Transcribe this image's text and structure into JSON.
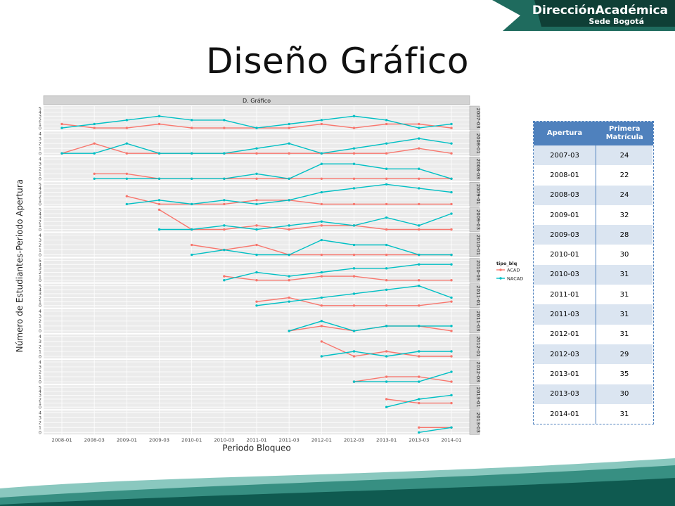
{
  "slide": {
    "title": "Diseño Gráfico"
  },
  "brand": {
    "name": "DirecciónAcadémica",
    "sub": "Sede Bogotá"
  },
  "table": {
    "headers": [
      "Apertura",
      "Primera Matrícula"
    ],
    "rows": [
      [
        "2007-03",
        "24"
      ],
      [
        "2008-01",
        "22"
      ],
      [
        "2008-03",
        "24"
      ],
      [
        "2009-01",
        "32"
      ],
      [
        "2009-03",
        "28"
      ],
      [
        "2010-01",
        "30"
      ],
      [
        "2010-03",
        "31"
      ],
      [
        "2011-01",
        "31"
      ],
      [
        "2011-03",
        "31"
      ],
      [
        "2012-01",
        "31"
      ],
      [
        "2012-03",
        "29"
      ],
      [
        "2013-01",
        "35"
      ],
      [
        "2013-03",
        "30"
      ],
      [
        "2014-01",
        "31"
      ]
    ]
  },
  "chart_data": {
    "type": "line",
    "title": "D. Gráfico",
    "xlabel": "Periodo Bloqueo",
    "ylabel": "Número de Estudiantes-Periodo Apertura",
    "x": [
      "2008-01",
      "2008-03",
      "2009-01",
      "2009-03",
      "2010-01",
      "2010-03",
      "2011-01",
      "2011-03",
      "2012-01",
      "2012-03",
      "2013-01",
      "2013-03",
      "2014-01"
    ],
    "legend": {
      "title": "tipo_blq",
      "entries": [
        "ACAD",
        "NACAD"
      ],
      "position": "right"
    },
    "series_colors": {
      "ACAD": "#f8766d",
      "NACAD": "#00bfc4"
    },
    "panels": [
      {
        "label": "2007-03",
        "yticks": [
          "0",
          "1",
          "2",
          "3",
          "4",
          "5"
        ],
        "ymax": 5,
        "ACAD": [
          1,
          0,
          0,
          1,
          0,
          0,
          0,
          0,
          1,
          0,
          1,
          1,
          0
        ],
        "NACAD": [
          0,
          1,
          2,
          3,
          2,
          2,
          0,
          1,
          2,
          3,
          2,
          0,
          1
        ]
      },
      {
        "label": "2008-01",
        "yticks": [
          "0",
          "1",
          "2",
          "3",
          "4"
        ],
        "ymax": 4,
        "ACAD": [
          0,
          2,
          0,
          0,
          0,
          0,
          0,
          0,
          0,
          0,
          0,
          1,
          0
        ],
        "NACAD": [
          0,
          0,
          2,
          0,
          0,
          0,
          1,
          2,
          0,
          1,
          2,
          3,
          2
        ]
      },
      {
        "label": "2008-03",
        "yticks": [
          "0",
          "1",
          "2",
          "3",
          "4"
        ],
        "ymax": 4,
        "ACAD": [
          null,
          1,
          1,
          0,
          0,
          0,
          0,
          0,
          0,
          0,
          0,
          0,
          0
        ],
        "NACAD": [
          null,
          0,
          0,
          0,
          0,
          0,
          1,
          0,
          3,
          3,
          2,
          2,
          0
        ]
      },
      {
        "label": "2009-01",
        "yticks": [
          "0",
          "1",
          "2",
          "3",
          "4",
          "5"
        ],
        "ymax": 5,
        "ACAD": [
          null,
          null,
          2,
          0,
          0,
          0,
          1,
          1,
          0,
          0,
          0,
          0,
          0
        ],
        "NACAD": [
          null,
          null,
          0,
          1,
          0,
          1,
          0,
          1,
          3,
          4,
          5,
          4,
          3
        ]
      },
      {
        "label": "2009-03",
        "yticks": [
          "0",
          "1",
          "2",
          "3",
          "4",
          "5"
        ],
        "ymax": 5,
        "ACAD": [
          null,
          null,
          null,
          5,
          0,
          0,
          1,
          0,
          1,
          1,
          0,
          0,
          0
        ],
        "NACAD": [
          null,
          null,
          null,
          0,
          0,
          1,
          0,
          1,
          2,
          1,
          3,
          1,
          4
        ]
      },
      {
        "label": "2010-01",
        "yticks": [
          "0",
          "1",
          "2",
          "3",
          "4"
        ],
        "ymax": 4,
        "ACAD": [
          null,
          null,
          null,
          null,
          2,
          1,
          2,
          0,
          0,
          0,
          0,
          0,
          0
        ],
        "NACAD": [
          null,
          null,
          null,
          null,
          0,
          1,
          0,
          0,
          3,
          2,
          2,
          0,
          0
        ]
      },
      {
        "label": "2010-03",
        "yticks": [
          "0",
          "1",
          "2",
          "3",
          "4",
          "5"
        ],
        "ymax": 5,
        "ACAD": [
          null,
          null,
          null,
          null,
          null,
          1,
          0,
          0,
          1,
          1,
          0,
          0,
          0
        ],
        "NACAD": [
          null,
          null,
          null,
          null,
          null,
          0,
          2,
          1,
          2,
          3,
          3,
          4,
          4
        ]
      },
      {
        "label": "2011-01",
        "yticks": [
          "0",
          "1",
          "2",
          "3",
          "4",
          "5"
        ],
        "ymax": 5,
        "ACAD": [
          null,
          null,
          null,
          null,
          null,
          null,
          1,
          2,
          0,
          0,
          0,
          0,
          1
        ],
        "NACAD": [
          null,
          null,
          null,
          null,
          null,
          null,
          0,
          1,
          2,
          3,
          4,
          5,
          2
        ]
      },
      {
        "label": "2011-03",
        "yticks": [
          "0",
          "1",
          "2",
          "3",
          "4"
        ],
        "ymax": 4,
        "ACAD": [
          null,
          null,
          null,
          null,
          null,
          null,
          null,
          0,
          1,
          0,
          1,
          1,
          0
        ],
        "NACAD": [
          null,
          null,
          null,
          null,
          null,
          null,
          null,
          0,
          2,
          0,
          1,
          1,
          1
        ]
      },
      {
        "label": "2012-01",
        "yticks": [
          "0",
          "1",
          "2",
          "3",
          "4"
        ],
        "ymax": 4,
        "ACAD": [
          null,
          null,
          null,
          null,
          null,
          null,
          null,
          null,
          3,
          0,
          1,
          0,
          0
        ],
        "NACAD": [
          null,
          null,
          null,
          null,
          null,
          null,
          null,
          null,
          0,
          1,
          0,
          1,
          1
        ]
      },
      {
        "label": "2012-03",
        "yticks": [
          "0",
          "1",
          "2",
          "3",
          "4"
        ],
        "ymax": 4,
        "ACAD": [
          null,
          null,
          null,
          null,
          null,
          null,
          null,
          null,
          null,
          0,
          1,
          1,
          0
        ],
        "NACAD": [
          null,
          null,
          null,
          null,
          null,
          null,
          null,
          null,
          null,
          0,
          0,
          0,
          2
        ]
      },
      {
        "label": "2013-01",
        "yticks": [
          "0",
          "1",
          "2",
          "3",
          "4",
          "5"
        ],
        "ymax": 5,
        "ACAD": [
          null,
          null,
          null,
          null,
          null,
          null,
          null,
          null,
          null,
          null,
          2,
          1,
          1
        ],
        "NACAD": [
          null,
          null,
          null,
          null,
          null,
          null,
          null,
          null,
          null,
          null,
          0,
          2,
          3
        ]
      },
      {
        "label": "2013-03",
        "yticks": [
          "0",
          "1",
          "2",
          "3",
          "4"
        ],
        "ymax": 4,
        "ACAD": [
          null,
          null,
          null,
          null,
          null,
          null,
          null,
          null,
          null,
          null,
          null,
          1,
          1
        ],
        "NACAD": [
          null,
          null,
          null,
          null,
          null,
          null,
          null,
          null,
          null,
          null,
          null,
          0,
          1
        ]
      }
    ]
  }
}
